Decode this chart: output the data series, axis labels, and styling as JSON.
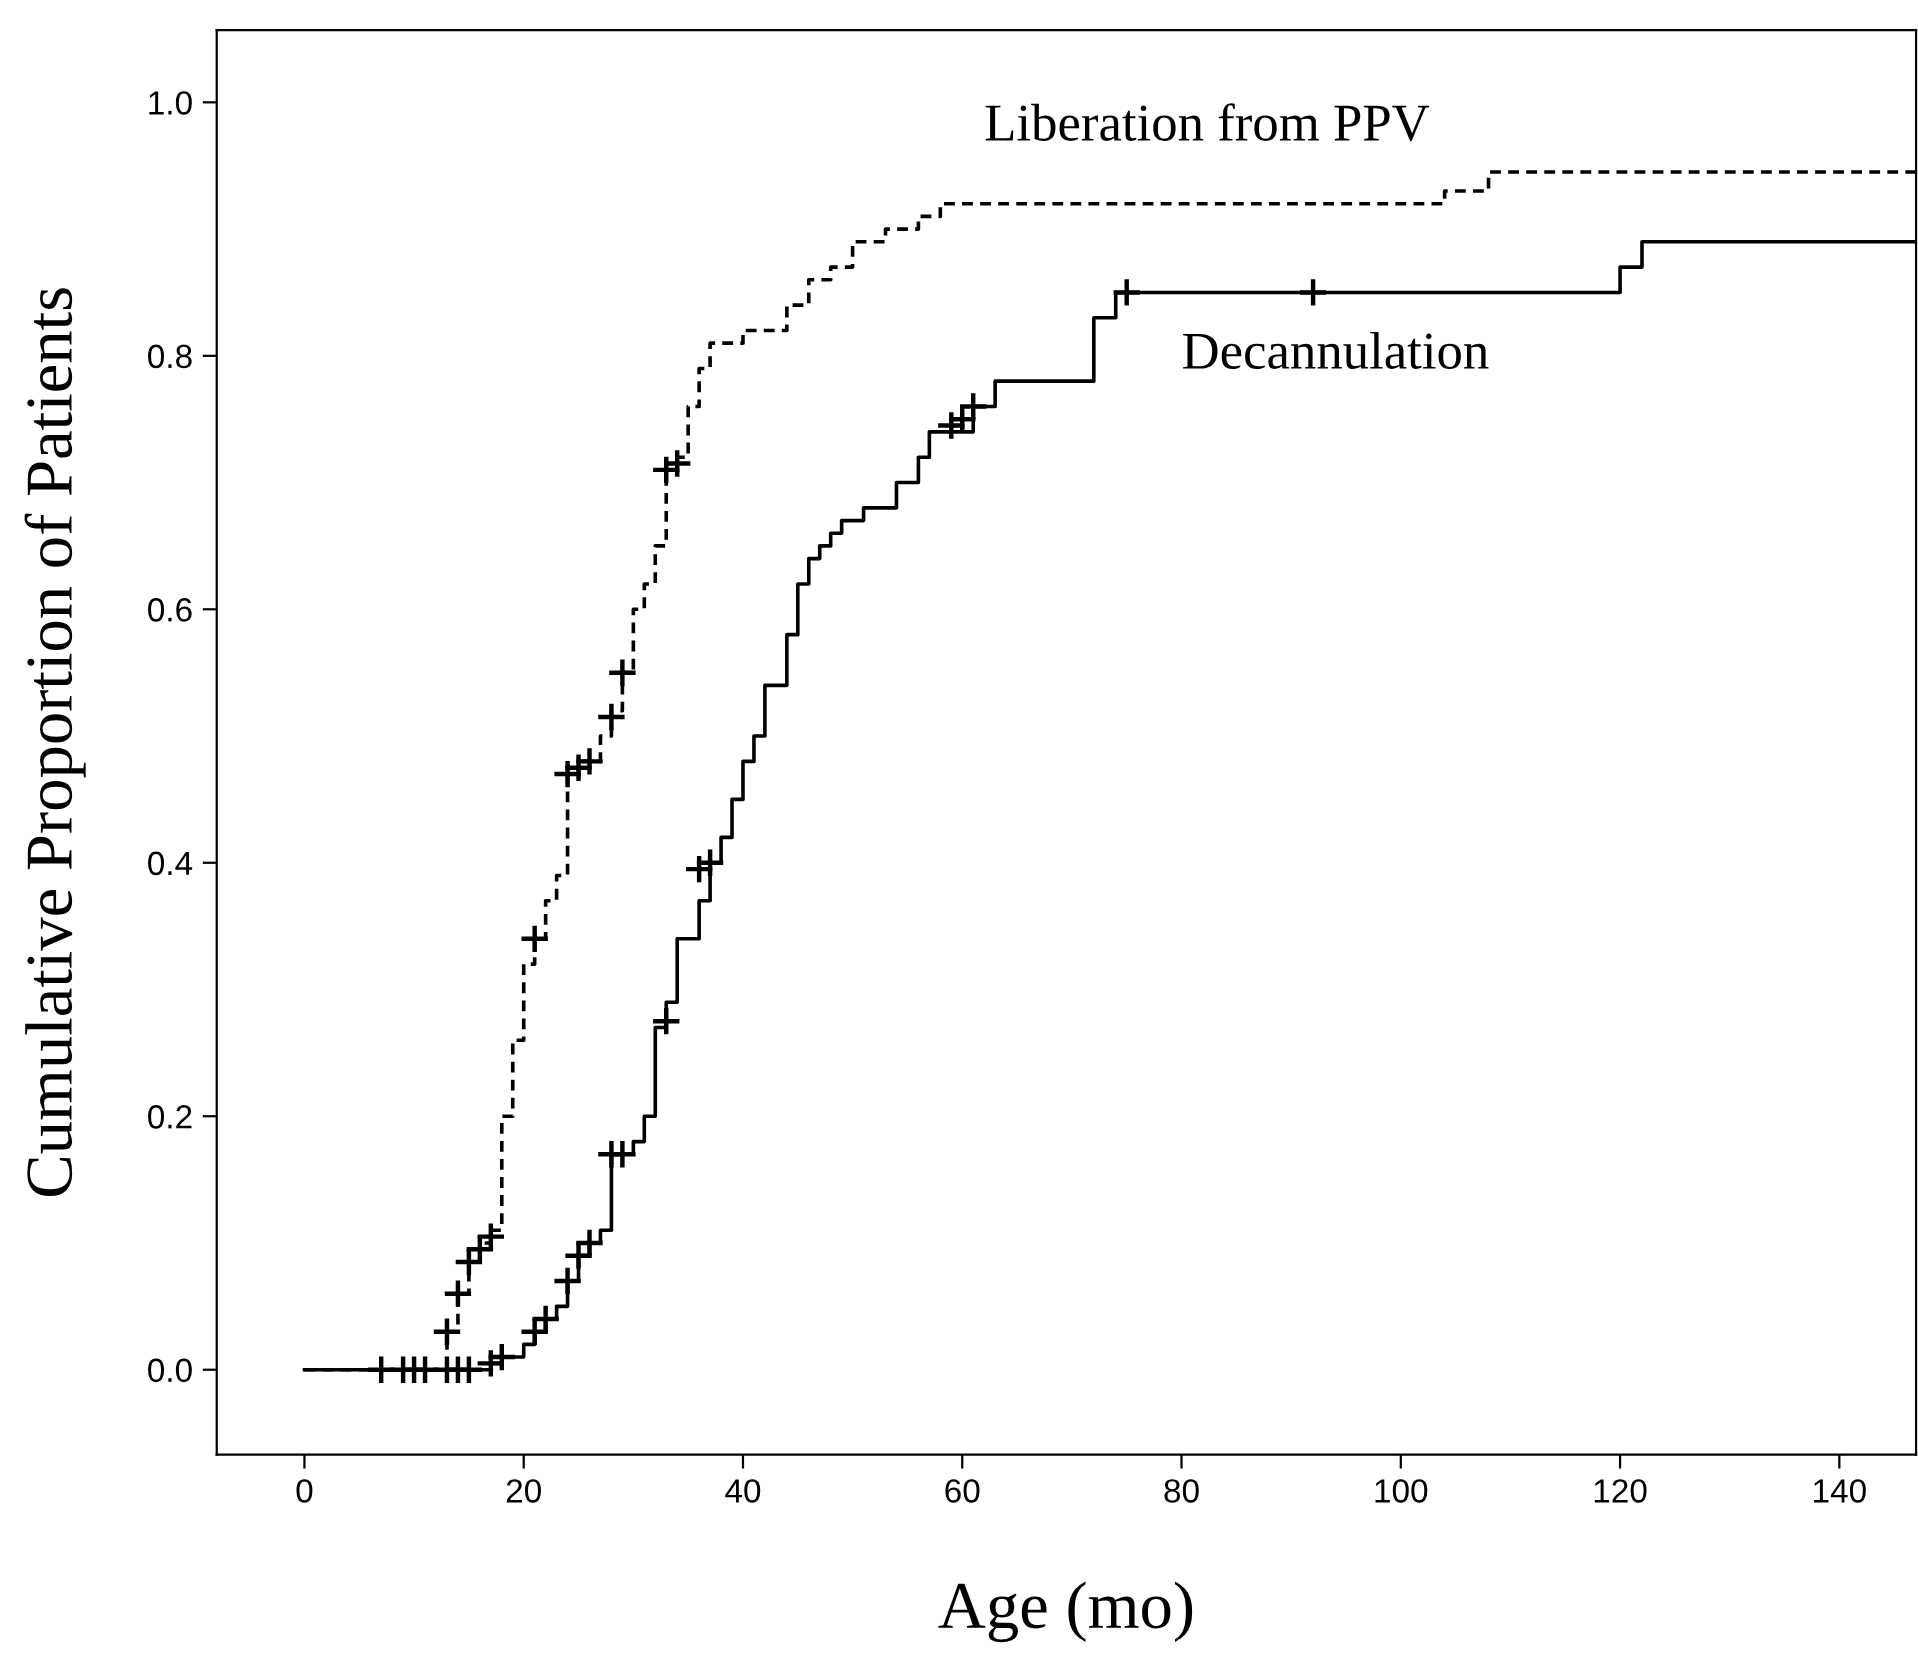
{
  "chart_data": {
    "type": "step",
    "xlabel": "Age (mo)",
    "ylabel": "Cumulative Proportion of Patients",
    "xlim": [
      -8,
      147
    ],
    "ylim": [
      -0.067,
      1.057
    ],
    "xticks": [
      0,
      20,
      40,
      60,
      80,
      100,
      120,
      140
    ],
    "yticks": [
      {
        "value": 0,
        "label": "0.0"
      },
      {
        "value": 0.2,
        "label": "0.2"
      },
      {
        "value": 0.4,
        "label": "0.4"
      },
      {
        "value": 0.6,
        "label": "0.6"
      },
      {
        "value": 0.8,
        "label": "0.8"
      },
      {
        "value": 1,
        "label": "1.0"
      }
    ],
    "grid": false,
    "legend": false,
    "series": [
      {
        "name": "Liberation from PPV",
        "color": "#000000",
        "line_style": "dashed",
        "marker": "none",
        "x": [
          0,
          13,
          14,
          15,
          16,
          17,
          18,
          19,
          20,
          21,
          22,
          23,
          24,
          25,
          26,
          27,
          28,
          29,
          30,
          31,
          32,
          33,
          34,
          35,
          36,
          37,
          40,
          44,
          46,
          48,
          50,
          53,
          56,
          58,
          104,
          108,
          147
        ],
        "values": [
          0,
          0.03,
          0.06,
          0.085,
          0.1,
          0.11,
          0.2,
          0.26,
          0.32,
          0.34,
          0.37,
          0.39,
          0.47,
          0.48,
          0.48,
          0.5,
          0.52,
          0.55,
          0.6,
          0.62,
          0.65,
          0.71,
          0.72,
          0.76,
          0.79,
          0.81,
          0.82,
          0.84,
          0.86,
          0.87,
          0.89,
          0.9,
          0.91,
          0.92,
          0.93,
          0.945,
          0.945
        ]
      },
      {
        "name": "Decannulation",
        "color": "#000000",
        "line_style": "solid",
        "marker": "none",
        "x": [
          0,
          17,
          18,
          20,
          21,
          22,
          23,
          24,
          25,
          26,
          27,
          28,
          30,
          31,
          32,
          33,
          34,
          36,
          37,
          38,
          39,
          40,
          41,
          42,
          44,
          45,
          46,
          47,
          48,
          49,
          51,
          54,
          56,
          57,
          61,
          63,
          72,
          74,
          120,
          122,
          147
        ],
        "values": [
          0,
          0.005,
          0.01,
          0.02,
          0.03,
          0.04,
          0.05,
          0.07,
          0.09,
          0.1,
          0.11,
          0.17,
          0.18,
          0.2,
          0.27,
          0.29,
          0.34,
          0.37,
          0.4,
          0.42,
          0.45,
          0.48,
          0.5,
          0.54,
          0.58,
          0.62,
          0.64,
          0.65,
          0.66,
          0.67,
          0.68,
          0.7,
          0.72,
          0.74,
          0.76,
          0.78,
          0.83,
          0.85,
          0.87,
          0.89,
          0.89
        ]
      },
      {
        "type": "scatter",
        "color": "#000000",
        "marker": "cross",
        "x": [
          7,
          9,
          10,
          11,
          13,
          14,
          15,
          13,
          14,
          15,
          16,
          17,
          21,
          24,
          25,
          26,
          28,
          29,
          33,
          34
        ],
        "values": [
          0,
          0,
          0,
          0,
          0,
          0,
          0,
          0.03,
          0.06,
          0.085,
          0.095,
          0.105,
          0.34,
          0.47,
          0.475,
          0.48,
          0.515,
          0.55,
          0.71,
          0.715
        ]
      },
      {
        "type": "scatter",
        "color": "#000000",
        "marker": "cross",
        "x": [
          17,
          18,
          21,
          22,
          24,
          25,
          26,
          28,
          29,
          33,
          36,
          37,
          59,
          60,
          61,
          75,
          92
        ],
        "values": [
          0.005,
          0.01,
          0.03,
          0.04,
          0.07,
          0.09,
          0.1,
          0.17,
          0.17,
          0.275,
          0.395,
          0.4,
          0.745,
          0.75,
          0.76,
          0.85,
          0.85
        ]
      }
    ]
  }
}
